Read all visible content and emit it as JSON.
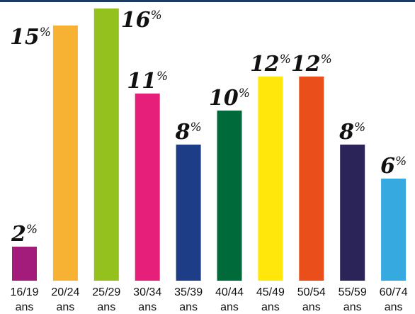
{
  "chart_data": {
    "type": "bar",
    "categories": [
      [
        "16/19",
        "ans"
      ],
      [
        "20/24",
        "ans"
      ],
      [
        "25/29",
        "ans"
      ],
      [
        "30/34",
        "ans"
      ],
      [
        "35/39",
        "ans"
      ],
      [
        "40/44",
        "ans"
      ],
      [
        "45/49",
        "ans"
      ],
      [
        "50/54",
        "ans"
      ],
      [
        "55/59",
        "ans"
      ],
      [
        "60/74",
        "ans"
      ]
    ],
    "values": [
      2,
      15,
      16,
      11,
      8,
      10,
      12,
      12,
      8,
      6
    ],
    "value_suffix": "%",
    "colors": [
      "#a31c7b",
      "#f7b233",
      "#95c11f",
      "#e6207a",
      "#1d3e87",
      "#006a3b",
      "#ffe70b",
      "#e94e1b",
      "#2a2458",
      "#36a9e1"
    ],
    "ylim": [
      0,
      16
    ],
    "grid": false,
    "legend": "none"
  }
}
